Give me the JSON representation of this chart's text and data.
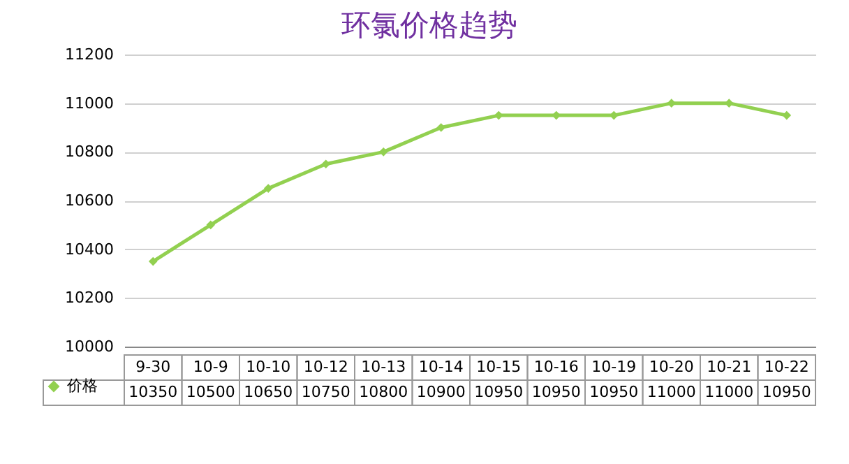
{
  "chart_data": {
    "type": "line",
    "title": "环氯价格趋势",
    "categories": [
      "9-30",
      "10-9",
      "10-10",
      "10-12",
      "10-13",
      "10-14",
      "10-15",
      "10-16",
      "10-19",
      "10-20",
      "10-21",
      "10-22"
    ],
    "series": [
      {
        "name": "价格",
        "color": "#92d050",
        "values": [
          10350,
          10500,
          10650,
          10750,
          10800,
          10900,
          10950,
          10950,
          10950,
          11000,
          11000,
          10950
        ]
      }
    ],
    "ylim": [
      10000,
      11200
    ],
    "yticks": [
      10000,
      10200,
      10400,
      10600,
      10800,
      11000,
      11200
    ],
    "grid": "y",
    "legend": "bottom left",
    "marker": "diamond",
    "line_style": "solid",
    "data_labels": true
  }
}
